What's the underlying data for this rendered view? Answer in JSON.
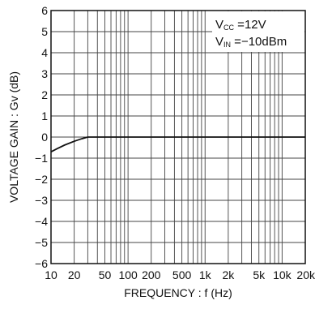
{
  "chart_data": {
    "type": "line",
    "x_scale": "log",
    "xlabel": "FREQUENCY : f (Hz)",
    "ylabel": "VOLTAGE GAIN : Gv (dB)",
    "xlim": [
      10,
      20000
    ],
    "ylim": [
      -6,
      6
    ],
    "grid": true,
    "x_ticks": [
      {
        "value": 10,
        "label": "10"
      },
      {
        "value": 20,
        "label": "20"
      },
      {
        "value": 50,
        "label": "50"
      },
      {
        "value": 100,
        "label": "100"
      },
      {
        "value": 200,
        "label": "200"
      },
      {
        "value": 500,
        "label": "500"
      },
      {
        "value": 1000,
        "label": "1k"
      },
      {
        "value": 2000,
        "label": "2k"
      },
      {
        "value": 5000,
        "label": "5k"
      },
      {
        "value": 10000,
        "label": "10k"
      },
      {
        "value": 20000,
        "label": "20k"
      }
    ],
    "y_ticks": [
      {
        "value": 6,
        "label": "6"
      },
      {
        "value": 5,
        "label": "5"
      },
      {
        "value": 4,
        "label": "4"
      },
      {
        "value": 3,
        "label": "3"
      },
      {
        "value": 2,
        "label": "2"
      },
      {
        "value": 1,
        "label": "1"
      },
      {
        "value": 0,
        "label": "0"
      },
      {
        "value": -1,
        "label": "−1"
      },
      {
        "value": -2,
        "label": "−2"
      },
      {
        "value": -3,
        "label": "−3"
      },
      {
        "value": -4,
        "label": "−4"
      },
      {
        "value": -5,
        "label": "−5"
      },
      {
        "value": -6,
        "label": "−6"
      }
    ],
    "series": [
      {
        "x": [
          10,
          12,
          15,
          20,
          25,
          30,
          40,
          50,
          100,
          200,
          500,
          1000,
          2000,
          5000,
          10000,
          20000
        ],
        "y": [
          -0.7,
          -0.55,
          -0.38,
          -0.2,
          -0.08,
          0,
          0,
          0,
          0,
          0,
          0,
          0,
          0,
          0,
          0,
          0
        ]
      }
    ],
    "annotations": [
      {
        "main": "V",
        "sub": "CC",
        "rest": " =12V"
      },
      {
        "main": "V",
        "sub": "IN",
        "rest": " =−10dBm"
      }
    ],
    "line_color": "#111111",
    "grid_color": "#444444"
  }
}
